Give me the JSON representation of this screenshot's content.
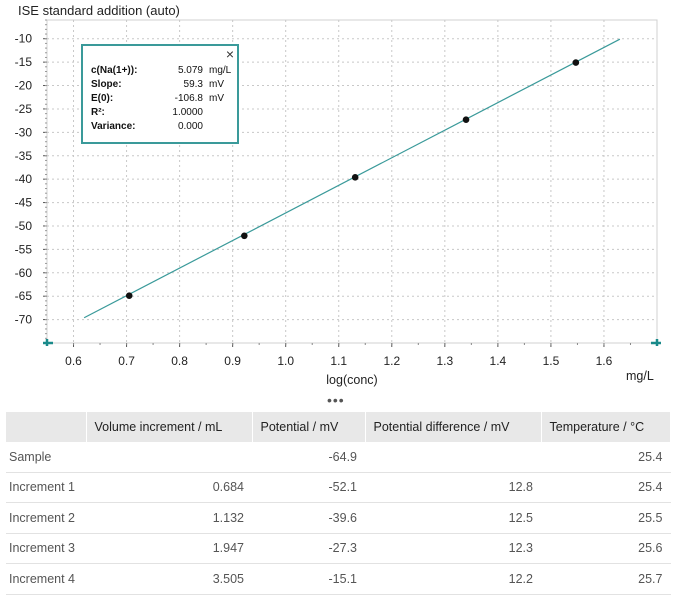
{
  "chart_data": {
    "type": "scatter",
    "title": "ISE standard addition (auto)",
    "xlabel": "log(conc)",
    "x_unit": "mg/L",
    "xlim": [
      0.55,
      1.7
    ],
    "ylim": [
      -75,
      -6
    ],
    "x_ticks": [
      0.6,
      0.7,
      0.8,
      0.9,
      1.0,
      1.1,
      1.2,
      1.3,
      1.4,
      1.5,
      1.6
    ],
    "y_ticks": [
      -10,
      -15,
      -20,
      -25,
      -30,
      -35,
      -40,
      -45,
      -50,
      -55,
      -60,
      -65,
      -70
    ],
    "grid": true,
    "points": [
      {
        "x": 0.705,
        "y": -64.9
      },
      {
        "x": 0.922,
        "y": -52.1
      },
      {
        "x": 1.131,
        "y": -39.6
      },
      {
        "x": 1.34,
        "y": -27.3
      },
      {
        "x": 1.547,
        "y": -15.1
      }
    ],
    "fit_line": {
      "x": [
        0.62,
        1.63
      ],
      "y": [
        -69.6,
        -10.1
      ]
    },
    "colors": {
      "line": "#3a9a9a",
      "points": "#111111",
      "axis_marks": "#1a8a8a"
    }
  },
  "fit": {
    "rows": [
      {
        "key": "c(Na(1+)):",
        "value": "5.079",
        "unit": "mg/L"
      },
      {
        "key": "Slope:",
        "value": "59.3",
        "unit": "mV"
      },
      {
        "key": "E(0):",
        "value": "-106.8",
        "unit": "mV"
      },
      {
        "key": "R²:",
        "value": "1.0000",
        "unit": ""
      },
      {
        "key": "Variance:",
        "value": "0.000",
        "unit": ""
      }
    ],
    "close_icon": "×"
  },
  "splitter": "•••",
  "table": {
    "headers": [
      "",
      "Volume increment / mL",
      "Potential / mV",
      "Potential difference / mV",
      "Temperature / °C"
    ],
    "rows": [
      [
        "Sample",
        "",
        "-64.9",
        "",
        "25.4"
      ],
      [
        "Increment 1",
        "0.684",
        "-52.1",
        "12.8",
        "25.4"
      ],
      [
        "Increment 2",
        "1.132",
        "-39.6",
        "12.5",
        "25.5"
      ],
      [
        "Increment 3",
        "1.947",
        "-27.3",
        "12.3",
        "25.6"
      ],
      [
        "Increment 4",
        "3.505",
        "-15.1",
        "12.2",
        "25.7"
      ]
    ]
  }
}
